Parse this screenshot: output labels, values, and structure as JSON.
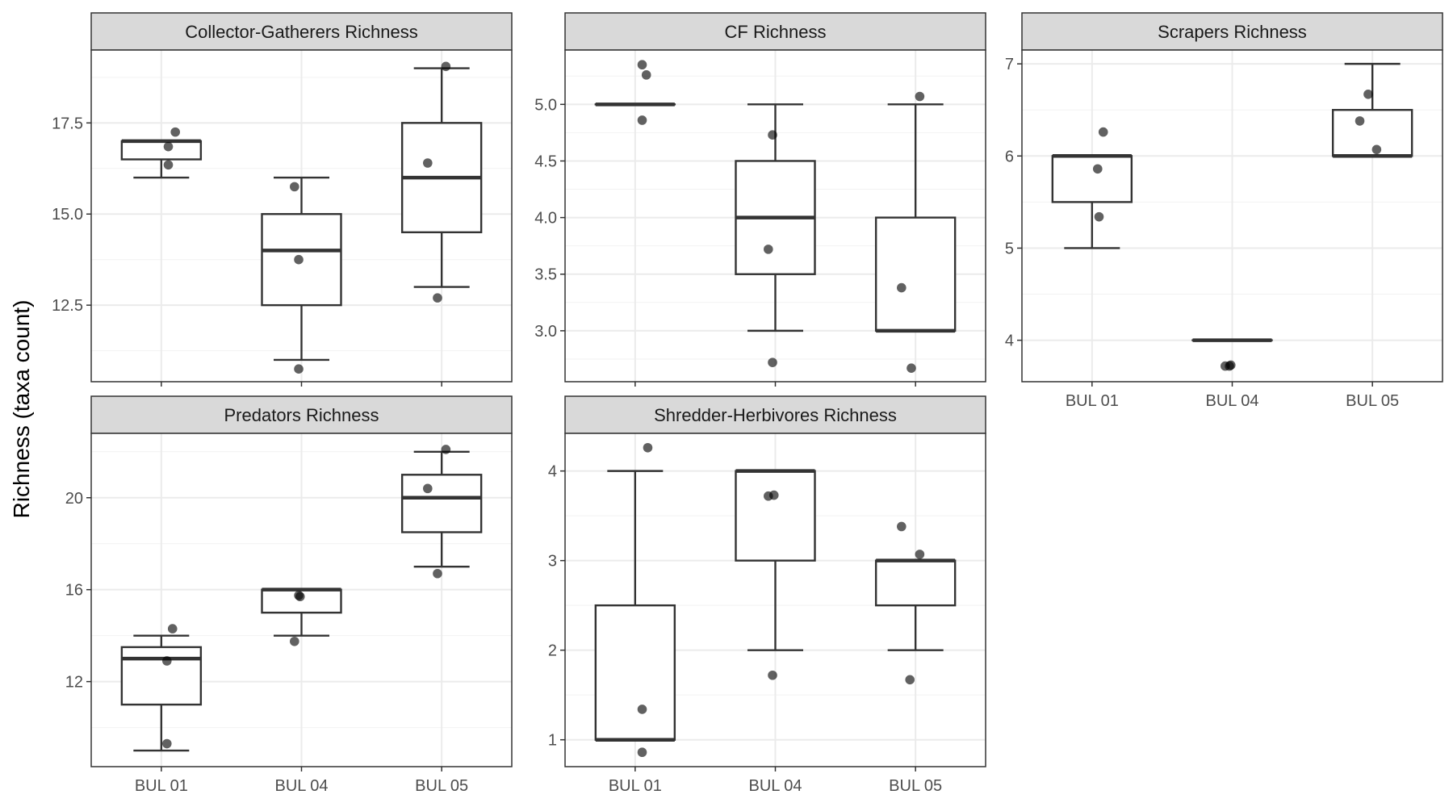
{
  "figure": {
    "ylabel": "Richness (taxa count)"
  },
  "chart_data": [
    {
      "type": "box",
      "title": "Collector-Gatherers Richness",
      "categories": [
        "BUL 01",
        "BUL 04",
        "BUL 05"
      ],
      "ylim": [
        10.4,
        19.5
      ],
      "yticks": [
        12.5,
        15.0,
        17.5
      ],
      "ytick_labels": [
        "12.5",
        "15.0",
        "17.5"
      ],
      "show_x_labels": false,
      "boxes": [
        {
          "min": 16,
          "q1": 16.5,
          "median": 17,
          "q3": 17,
          "max": 17
        },
        {
          "min": 11,
          "q1": 12.5,
          "median": 14,
          "q3": 15,
          "max": 16
        },
        {
          "min": 13,
          "q1": 14.5,
          "median": 16,
          "q3": 17.5,
          "max": 19
        }
      ],
      "points": [
        {
          "cat": 0,
          "jitter": 0.1,
          "y": 17.25
        },
        {
          "cat": 0,
          "jitter": 0.05,
          "y": 16.85
        },
        {
          "cat": 0,
          "jitter": 0.05,
          "y": 16.35
        },
        {
          "cat": 1,
          "jitter": -0.05,
          "y": 15.75
        },
        {
          "cat": 1,
          "jitter": -0.02,
          "y": 13.75
        },
        {
          "cat": 1,
          "jitter": -0.02,
          "y": 10.75
        },
        {
          "cat": 2,
          "jitter": 0.03,
          "y": 19.05
        },
        {
          "cat": 2,
          "jitter": -0.1,
          "y": 16.4
        },
        {
          "cat": 2,
          "jitter": -0.03,
          "y": 12.7
        }
      ]
    },
    {
      "type": "box",
      "title": "CF Richness",
      "categories": [
        "BUL 01",
        "BUL 04",
        "BUL 05"
      ],
      "ylim": [
        2.55,
        5.48
      ],
      "yticks": [
        3.0,
        3.5,
        4.0,
        4.5,
        5.0
      ],
      "ytick_labels": [
        "3.0",
        "3.5",
        "4.0",
        "4.5",
        "5.0"
      ],
      "show_x_labels": false,
      "boxes": [
        {
          "min": 5,
          "q1": 5,
          "median": 5,
          "q3": 5,
          "max": 5
        },
        {
          "min": 3,
          "q1": 3.5,
          "median": 4,
          "q3": 4.5,
          "max": 5
        },
        {
          "min": 3,
          "q1": 3,
          "median": 3,
          "q3": 4,
          "max": 5
        }
      ],
      "points": [
        {
          "cat": 0,
          "jitter": 0.05,
          "y": 5.35
        },
        {
          "cat": 0,
          "jitter": 0.08,
          "y": 5.26
        },
        {
          "cat": 0,
          "jitter": 0.05,
          "y": 4.86
        },
        {
          "cat": 1,
          "jitter": -0.02,
          "y": 4.73
        },
        {
          "cat": 1,
          "jitter": -0.05,
          "y": 3.72
        },
        {
          "cat": 1,
          "jitter": -0.02,
          "y": 2.72
        },
        {
          "cat": 2,
          "jitter": 0.03,
          "y": 5.07
        },
        {
          "cat": 2,
          "jitter": -0.1,
          "y": 3.38
        },
        {
          "cat": 2,
          "jitter": -0.03,
          "y": 2.67
        }
      ]
    },
    {
      "type": "box",
      "title": "Scrapers Richness",
      "categories": [
        "BUL 01",
        "BUL 04",
        "BUL 05"
      ],
      "ylim": [
        3.55,
        7.15
      ],
      "yticks": [
        4,
        5,
        6,
        7
      ],
      "ytick_labels": [
        "4",
        "5",
        "6",
        "7"
      ],
      "show_x_labels": true,
      "boxes": [
        {
          "min": 5,
          "q1": 5.5,
          "median": 6,
          "q3": 6,
          "max": 6
        },
        {
          "min": 4,
          "q1": 4,
          "median": 4,
          "q3": 4,
          "max": 4
        },
        {
          "min": 6,
          "q1": 6,
          "median": 6,
          "q3": 6.5,
          "max": 7
        }
      ],
      "points": [
        {
          "cat": 0,
          "jitter": 0.08,
          "y": 6.26
        },
        {
          "cat": 0,
          "jitter": 0.04,
          "y": 5.86
        },
        {
          "cat": 0,
          "jitter": 0.05,
          "y": 5.34
        },
        {
          "cat": 1,
          "jitter": -0.05,
          "y": 3.72
        },
        {
          "cat": 1,
          "jitter": -0.02,
          "y": 3.72
        },
        {
          "cat": 1,
          "jitter": -0.01,
          "y": 3.73
        },
        {
          "cat": 2,
          "jitter": -0.03,
          "y": 6.67
        },
        {
          "cat": 2,
          "jitter": -0.09,
          "y": 6.38
        },
        {
          "cat": 2,
          "jitter": 0.03,
          "y": 6.07
        }
      ]
    },
    {
      "type": "box",
      "title": "Predators Richness",
      "categories": [
        "BUL 01",
        "BUL 04",
        "BUL 05"
      ],
      "ylim": [
        8.3,
        22.8
      ],
      "yticks": [
        12,
        16,
        20
      ],
      "ytick_labels": [
        "12",
        "16",
        "20"
      ],
      "show_x_labels": true,
      "boxes": [
        {
          "min": 9,
          "q1": 11,
          "median": 13,
          "q3": 13.5,
          "max": 14
        },
        {
          "min": 14,
          "q1": 15,
          "median": 16,
          "q3": 16,
          "max": 16
        },
        {
          "min": 17,
          "q1": 18.5,
          "median": 20,
          "q3": 21,
          "max": 22
        }
      ],
      "points": [
        {
          "cat": 0,
          "jitter": 0.08,
          "y": 14.3
        },
        {
          "cat": 0,
          "jitter": 0.04,
          "y": 12.9
        },
        {
          "cat": 0,
          "jitter": 0.04,
          "y": 9.3
        },
        {
          "cat": 1,
          "jitter": -0.02,
          "y": 15.75
        },
        {
          "cat": 1,
          "jitter": -0.01,
          "y": 15.7
        },
        {
          "cat": 1,
          "jitter": -0.05,
          "y": 13.75
        },
        {
          "cat": 2,
          "jitter": 0.03,
          "y": 22.1
        },
        {
          "cat": 2,
          "jitter": -0.1,
          "y": 20.4
        },
        {
          "cat": 2,
          "jitter": -0.03,
          "y": 16.7
        }
      ]
    },
    {
      "type": "box",
      "title": "Shredder-Herbivores Richness",
      "categories": [
        "BUL 01",
        "BUL 04",
        "BUL 05"
      ],
      "ylim": [
        0.7,
        4.42
      ],
      "yticks": [
        1,
        2,
        3,
        4
      ],
      "ytick_labels": [
        "1",
        "2",
        "3",
        "4"
      ],
      "show_x_labels": true,
      "boxes": [
        {
          "min": 1,
          "q1": 1,
          "median": 1,
          "q3": 2.5,
          "max": 4
        },
        {
          "min": 2,
          "q1": 3,
          "median": 4,
          "q3": 4,
          "max": 4
        },
        {
          "min": 2,
          "q1": 2.5,
          "median": 3,
          "q3": 3,
          "max": 3
        }
      ],
      "points": [
        {
          "cat": 0,
          "jitter": 0.09,
          "y": 4.26
        },
        {
          "cat": 0,
          "jitter": 0.05,
          "y": 1.34
        },
        {
          "cat": 0,
          "jitter": 0.05,
          "y": 0.86
        },
        {
          "cat": 1,
          "jitter": -0.05,
          "y": 3.72
        },
        {
          "cat": 1,
          "jitter": -0.01,
          "y": 3.73
        },
        {
          "cat": 1,
          "jitter": -0.02,
          "y": 1.72
        },
        {
          "cat": 2,
          "jitter": -0.1,
          "y": 3.38
        },
        {
          "cat": 2,
          "jitter": 0.03,
          "y": 3.07
        },
        {
          "cat": 2,
          "jitter": -0.04,
          "y": 1.67
        }
      ]
    }
  ]
}
